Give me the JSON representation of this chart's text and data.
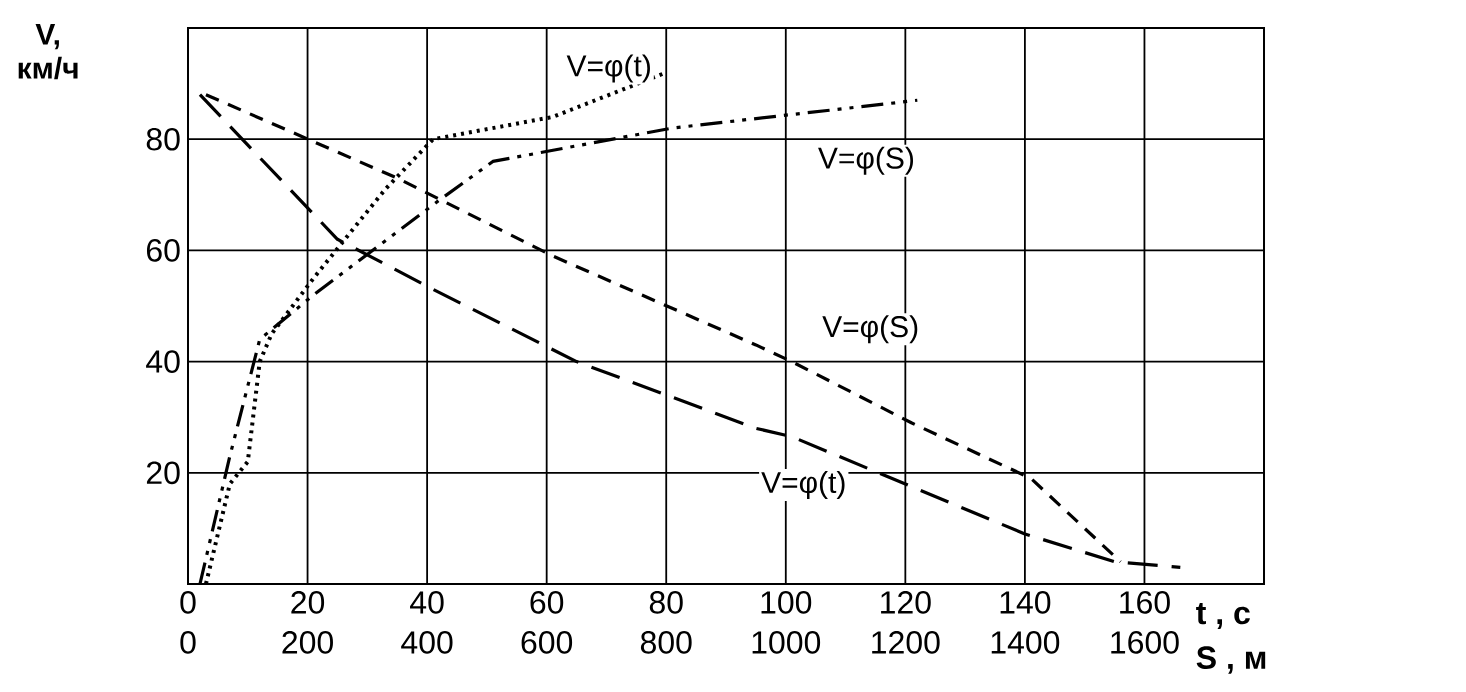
{
  "chart_data": {
    "type": "line",
    "xlabel": "t , с",
    "x2label": "S , м",
    "ylabel": "V, км/ч",
    "xlim": [
      0,
      180
    ],
    "xticks": [
      0,
      20,
      40,
      60,
      80,
      100,
      120,
      140,
      160
    ],
    "x2lim": [
      0,
      1800
    ],
    "x2ticks": [
      0,
      200,
      400,
      600,
      800,
      1000,
      1200,
      1400,
      1600
    ],
    "ylim": [
      0,
      100
    ],
    "yticks": [
      20,
      40,
      60,
      80
    ],
    "grid": true,
    "series": [
      {
        "name": "V=φ(t)",
        "color": "#000000",
        "line_style": "dotted",
        "x": [
          3,
          7,
          10,
          12,
          14,
          21,
          33,
          41,
          61,
          80
        ],
        "values": [
          0,
          18,
          22,
          40,
          45,
          55,
          71,
          80,
          84,
          92
        ]
      },
      {
        "name": "V=φ(S)",
        "color": "#000000",
        "line_style": "dashdot",
        "axis": "x2",
        "x": [
          20,
          70,
          120,
          210,
          420,
          510,
          810,
          1220
        ],
        "values": [
          0,
          23,
          44,
          52,
          69,
          76,
          82,
          87
        ]
      },
      {
        "name": "V=φ(S)",
        "color": "#000000",
        "line_style": "dashed",
        "axis": "x2",
        "x": [
          30,
          350,
          610,
          950,
          1010,
          1210,
          1410,
          1520,
          1560
        ],
        "values": [
          88,
          73,
          59,
          43,
          40,
          29,
          19,
          8,
          4
        ]
      },
      {
        "name": "V=φ(t)",
        "color": "#000000",
        "line_style": "longdashed",
        "x": [
          2,
          25,
          41,
          65,
          95,
          101,
          140,
          155,
          166
        ],
        "values": [
          88,
          62,
          53,
          40,
          28,
          26.5,
          9,
          4,
          3
        ]
      }
    ]
  }
}
